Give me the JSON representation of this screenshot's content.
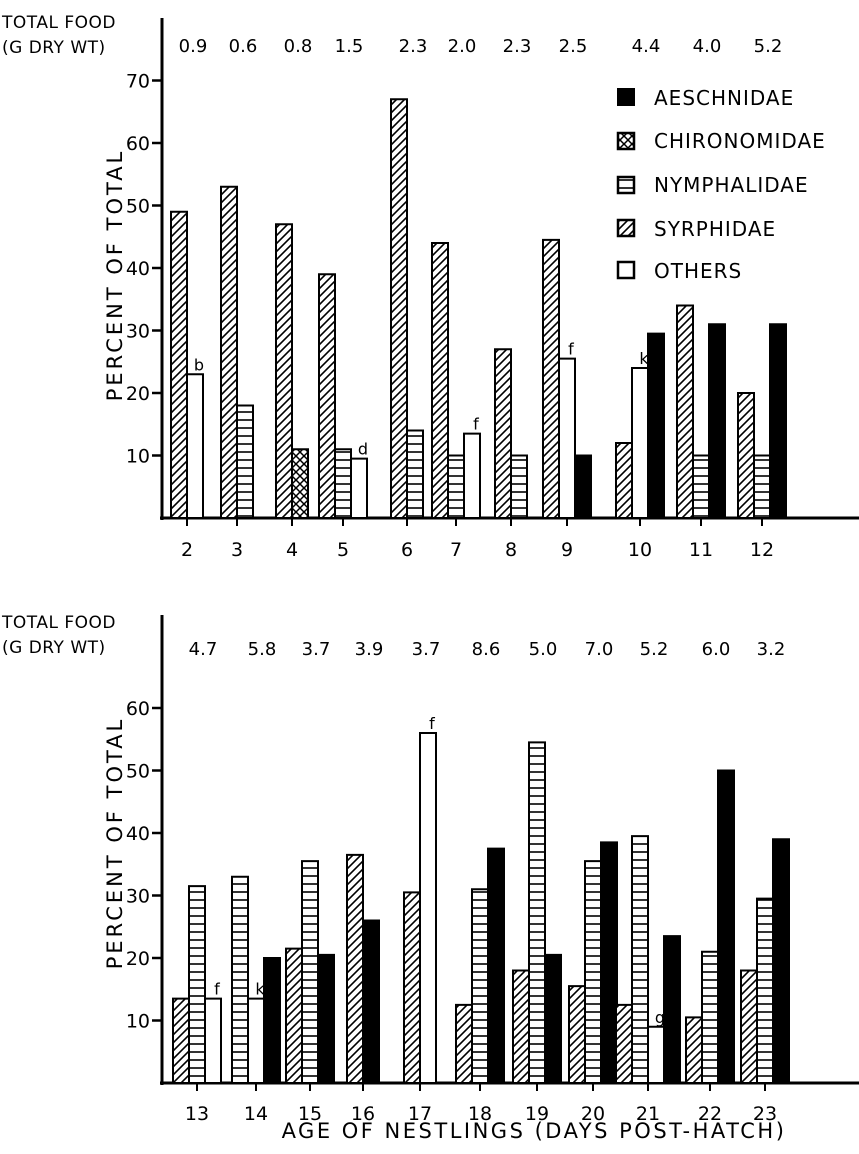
{
  "shared": {
    "xlabel": "AGE OF NESTLINGS (DAYS POST-HATCH)",
    "ylabel": "PERCENT OF TOTAL",
    "total_food_label_line1": "TOTAL FOOD",
    "total_food_label_line2": "(G DRY WT)",
    "legend": [
      {
        "name": "AESCHNIDAE",
        "pattern": "solid"
      },
      {
        "name": "CHIRONOMIDAE",
        "pattern": "crosshatch"
      },
      {
        "name": "NYMPHALIDAE",
        "pattern": "horizontal"
      },
      {
        "name": "SYRPHIDAE",
        "pattern": "diagonal"
      },
      {
        "name": "OTHERS",
        "pattern": "open"
      }
    ],
    "colors": {
      "ink": "#000000",
      "paper": "#ffffff"
    }
  },
  "chart_data": [
    {
      "type": "bar",
      "ylim": [
        0,
        70
      ],
      "yticks": [
        10,
        20,
        30,
        40,
        50,
        60,
        70
      ],
      "legend_position": "top-right",
      "categories": [
        "2",
        "3",
        "4",
        "5",
        "6",
        "7",
        "8",
        "9",
        "10",
        "11",
        "12"
      ],
      "total_food": [
        "0.9",
        "0.6",
        "0.8",
        "1.5",
        "2.3",
        "2.0",
        "2.3",
        "2.5",
        "4.4",
        "4.0",
        "5.2"
      ],
      "series": [
        {
          "name": "AESCHNIDAE",
          "values": [
            null,
            null,
            null,
            null,
            null,
            null,
            null,
            10,
            29.5,
            31,
            31
          ]
        },
        {
          "name": "CHIRONOMIDAE",
          "values": [
            null,
            null,
            11,
            null,
            null,
            null,
            null,
            null,
            null,
            null,
            null
          ]
        },
        {
          "name": "NYMPHALIDAE",
          "values": [
            null,
            18,
            null,
            11,
            14,
            10,
            10,
            null,
            null,
            10,
            10
          ]
        },
        {
          "name": "SYRPHIDAE",
          "values": [
            49,
            53,
            47,
            39,
            67,
            44,
            27,
            44.5,
            12,
            34,
            20
          ]
        },
        {
          "name": "OTHERS",
          "values": [
            23,
            null,
            null,
            9.5,
            null,
            13.5,
            null,
            25.5,
            24,
            null,
            null
          ]
        }
      ],
      "annotations": [
        {
          "category": "2",
          "series": "OTHERS",
          "text": "b"
        },
        {
          "category": "5",
          "series": "OTHERS",
          "text": "d"
        },
        {
          "category": "7",
          "series": "OTHERS",
          "text": "f"
        },
        {
          "category": "9",
          "series": "OTHERS",
          "text": "f"
        },
        {
          "category": "10",
          "series": "OTHERS",
          "text": "k"
        }
      ]
    },
    {
      "type": "bar",
      "ylim": [
        0,
        60
      ],
      "yticks": [
        10,
        20,
        30,
        40,
        50,
        60
      ],
      "categories": [
        "13",
        "14",
        "15",
        "16",
        "17",
        "18",
        "19",
        "20",
        "21",
        "22",
        "23"
      ],
      "total_food": [
        "4.7",
        "5.8",
        "3.7",
        "3.9",
        "3.7",
        "8.6",
        "5.0",
        "7.0",
        "5.2",
        "6.0",
        "3.2"
      ],
      "series": [
        {
          "name": "AESCHNIDAE",
          "values": [
            null,
            20,
            20.5,
            26,
            null,
            37.5,
            20.5,
            38.5,
            23.5,
            50,
            39
          ]
        },
        {
          "name": "CHIRONOMIDAE",
          "values": [
            null,
            null,
            null,
            null,
            null,
            null,
            null,
            null,
            null,
            null,
            null
          ]
        },
        {
          "name": "NYMPHALIDAE",
          "values": [
            31.5,
            33,
            35.5,
            null,
            null,
            31,
            54.5,
            35.5,
            39.5,
            21,
            29.5
          ]
        },
        {
          "name": "SYRPHIDAE",
          "values": [
            13.5,
            null,
            21.5,
            36.5,
            30.5,
            12.5,
            18,
            15.5,
            12.5,
            10.5,
            18
          ]
        },
        {
          "name": "OTHERS",
          "values": [
            13.5,
            13.5,
            null,
            null,
            56,
            null,
            null,
            null,
            9,
            null,
            null
          ]
        }
      ],
      "annotations": [
        {
          "category": "13",
          "series": "OTHERS",
          "text": "f"
        },
        {
          "category": "14",
          "series": "OTHERS",
          "text": "k"
        },
        {
          "category": "17",
          "series": "OTHERS",
          "text": "f"
        },
        {
          "category": "21",
          "series": "OTHERS",
          "text": "g"
        }
      ]
    }
  ]
}
